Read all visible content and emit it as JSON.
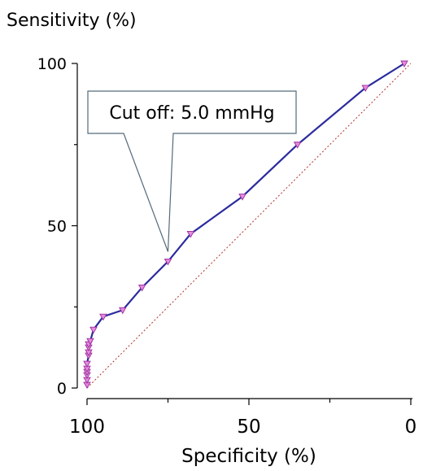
{
  "chart_data": {
    "type": "line",
    "ylabel": "Sensitivity (%)",
    "xlabel": "Specificity (%)",
    "x_reversed": true,
    "xlim": [
      100,
      0
    ],
    "ylim": [
      0,
      100
    ],
    "x_ticks": [
      "100",
      "50",
      "0"
    ],
    "y_ticks": [
      "100",
      "50",
      "0"
    ],
    "grid": false,
    "series": [
      {
        "color": "#2b2b9e",
        "marker": "triangle-down",
        "marker_color": "#e58be0",
        "x": [
          100,
          100,
          100,
          100,
          100,
          100,
          99.5,
          99.5,
          99.5,
          99.5,
          99,
          98,
          95,
          89,
          83,
          75,
          68,
          52,
          35,
          14,
          2
        ],
        "y": [
          1,
          2.5,
          4,
          5,
          6,
          7.5,
          10,
          11,
          12.5,
          13.5,
          14.5,
          18,
          22,
          24,
          31,
          39,
          47.5,
          59,
          75,
          92.5,
          100
        ]
      }
    ],
    "reference_line": {
      "x": [
        100,
        0
      ],
      "y": [
        0,
        100
      ],
      "style": "dotted",
      "color": "#b03030"
    },
    "annotation": {
      "text": "Cut off: 5.0 mmHg",
      "x": 75,
      "y": 39
    }
  }
}
